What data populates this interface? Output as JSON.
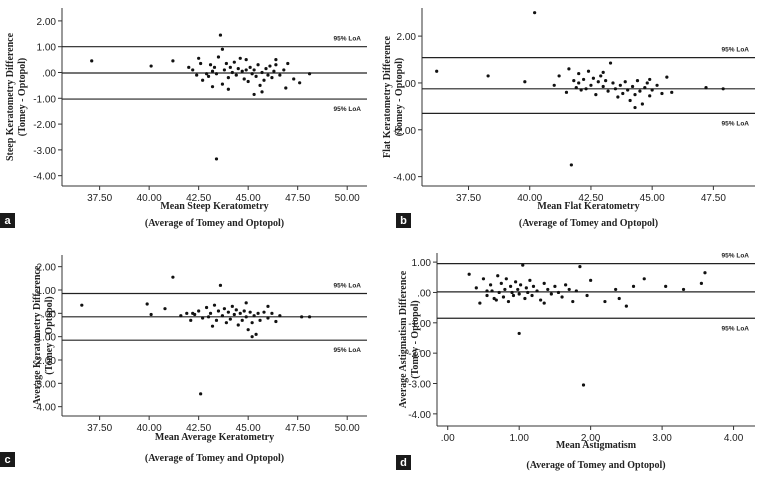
{
  "chart_data": [
    {
      "panel": "a",
      "type": "scatter",
      "xlabel": "Mean Steep Keratometry",
      "xlabel2": "(Average of Tomey and Optopol)",
      "ylabel": "Steep Keratometry Difference",
      "ylabel2": "(Tomey - Optopol)",
      "xlim": [
        35.6,
        51.0
      ],
      "ylim": [
        -4.4,
        2.5
      ],
      "xticks": [
        37.5,
        40,
        42.5,
        45,
        47.5,
        50
      ],
      "xtick_labels": [
        "37.50",
        "40.00",
        "42.50",
        "45.00",
        "47.50",
        "50.00"
      ],
      "yticks": [
        2,
        1,
        0,
        -1,
        -2,
        -3,
        -4
      ],
      "ytick_labels": [
        "2.00",
        "1.00",
        ".00",
        "-1.00",
        "-2.00",
        "-3.00",
        "-4.00"
      ],
      "mean_line": -0.02,
      "loa_upper": 1.0,
      "loa_lower": -1.03,
      "loa_label": "95% LoA",
      "points": [
        [
          37.1,
          0.45
        ],
        [
          40.1,
          0.25
        ],
        [
          41.2,
          0.45
        ],
        [
          42.0,
          0.2
        ],
        [
          42.2,
          0.1
        ],
        [
          42.4,
          -0.1
        ],
        [
          42.6,
          0.35
        ],
        [
          42.7,
          -0.3
        ],
        [
          43.0,
          -0.15
        ],
        [
          43.1,
          0.3
        ],
        [
          43.2,
          0.05
        ],
        [
          43.3,
          0.2
        ],
        [
          43.4,
          -0.05
        ],
        [
          43.5,
          0.6
        ],
        [
          43.6,
          1.45
        ],
        [
          43.7,
          0.9
        ],
        [
          43.8,
          0.1
        ],
        [
          43.9,
          0.35
        ],
        [
          44.0,
          -0.2
        ],
        [
          44.1,
          0.2
        ],
        [
          44.2,
          0.0
        ],
        [
          44.3,
          0.4
        ],
        [
          44.4,
          -0.1
        ],
        [
          44.5,
          0.15
        ],
        [
          44.6,
          0.55
        ],
        [
          44.7,
          0.05
        ],
        [
          44.8,
          -0.25
        ],
        [
          44.9,
          0.1
        ],
        [
          45.0,
          -0.35
        ],
        [
          45.1,
          0.2
        ],
        [
          45.2,
          -0.05
        ],
        [
          45.3,
          0.1
        ],
        [
          45.4,
          -0.15
        ],
        [
          45.5,
          0.3
        ],
        [
          45.6,
          -0.5
        ],
        [
          45.7,
          0.0
        ],
        [
          45.8,
          -0.3
        ],
        [
          45.9,
          0.15
        ],
        [
          46.0,
          -0.1
        ],
        [
          46.1,
          0.25
        ],
        [
          46.2,
          -0.2
        ],
        [
          46.3,
          0.05
        ],
        [
          46.4,
          0.3
        ],
        [
          46.6,
          -0.1
        ],
        [
          46.8,
          0.1
        ],
        [
          47.0,
          0.35
        ],
        [
          47.3,
          -0.25
        ],
        [
          47.6,
          -0.4
        ],
        [
          48.1,
          -0.05
        ],
        [
          43.4,
          -3.35
        ],
        [
          42.9,
          -0.05
        ],
        [
          43.7,
          -0.45
        ],
        [
          44.0,
          -0.65
        ],
        [
          45.3,
          -0.85
        ],
        [
          45.7,
          -0.75
        ],
        [
          46.4,
          0.5
        ],
        [
          42.5,
          0.55
        ],
        [
          44.9,
          0.5
        ],
        [
          43.2,
          -0.55
        ],
        [
          46.9,
          -0.6
        ]
      ]
    },
    {
      "panel": "b",
      "type": "scatter",
      "xlabel": "Mean Flat Keratometry",
      "xlabel2": "(Average of Tomey and Optopol)",
      "ylabel": "Flat Keratometry Difference",
      "ylabel2": "(Tomey - Optopol)",
      "xlim": [
        35.6,
        49.2
      ],
      "ylim": [
        -4.4,
        3.2
      ],
      "xticks": [
        37.5,
        40,
        42.5,
        45,
        47.5
      ],
      "xtick_labels": [
        "37.50",
        "40.00",
        "42.50",
        "45.00",
        "47.50"
      ],
      "yticks": [
        2,
        0,
        -2,
        -4
      ],
      "ytick_labels": [
        "2.00",
        ".00",
        "-2.00",
        "-4.00"
      ],
      "mean_line": -0.25,
      "loa_upper": 1.08,
      "loa_lower": -1.3,
      "loa_label": "95% LoA",
      "points": [
        [
          36.2,
          0.5
        ],
        [
          38.3,
          0.3
        ],
        [
          39.8,
          0.05
        ],
        [
          40.2,
          3.0
        ],
        [
          41.0,
          -0.1
        ],
        [
          41.2,
          0.3
        ],
        [
          41.5,
          -0.4
        ],
        [
          41.6,
          0.6
        ],
        [
          41.8,
          0.1
        ],
        [
          41.9,
          -0.2
        ],
        [
          42.0,
          0.4
        ],
        [
          42.1,
          -0.3
        ],
        [
          42.2,
          0.15
        ],
        [
          42.4,
          0.5
        ],
        [
          42.5,
          -0.1
        ],
        [
          42.6,
          0.2
        ],
        [
          42.7,
          -0.5
        ],
        [
          42.8,
          0.05
        ],
        [
          42.9,
          0.3
        ],
        [
          43.0,
          -0.15
        ],
        [
          43.1,
          0.1
        ],
        [
          43.2,
          -0.35
        ],
        [
          43.3,
          0.85
        ],
        [
          43.4,
          0.0
        ],
        [
          43.5,
          -0.25
        ],
        [
          43.6,
          -0.6
        ],
        [
          43.7,
          -0.1
        ],
        [
          43.8,
          -0.45
        ],
        [
          43.9,
          0.05
        ],
        [
          44.0,
          -0.3
        ],
        [
          44.1,
          -0.75
        ],
        [
          44.2,
          -0.15
        ],
        [
          44.3,
          -0.5
        ],
        [
          44.4,
          0.1
        ],
        [
          44.5,
          -0.35
        ],
        [
          44.6,
          -0.9
        ],
        [
          44.7,
          -0.2
        ],
        [
          44.8,
          0.0
        ],
        [
          44.9,
          -0.55
        ],
        [
          45.0,
          -0.3
        ],
        [
          45.2,
          -0.1
        ],
        [
          45.4,
          -0.45
        ],
        [
          45.6,
          0.25
        ],
        [
          45.8,
          -0.4
        ],
        [
          47.2,
          -0.2
        ],
        [
          47.9,
          -0.25
        ],
        [
          41.7,
          -3.5
        ],
        [
          42.3,
          -0.25
        ],
        [
          43.0,
          0.45
        ],
        [
          44.3,
          -1.05
        ],
        [
          44.9,
          0.15
        ],
        [
          42.0,
          0.0
        ]
      ]
    },
    {
      "panel": "c",
      "type": "scatter",
      "xlabel": "Mean Average Keratometry",
      "xlabel2": "(Average of Tomey and Optopol)",
      "ylabel": "Average Keratometry Difference",
      "ylabel2": "(Tomey - Optopol)",
      "xlim": [
        35.6,
        51.0
      ],
      "ylim": [
        -4.4,
        2.5
      ],
      "xticks": [
        37.5,
        40,
        42.5,
        45,
        47.5,
        50
      ],
      "xtick_labels": [
        "37.50",
        "40.00",
        "42.50",
        "45.00",
        "47.50",
        "50.00"
      ],
      "yticks": [
        2,
        1,
        0,
        -1,
        -2,
        -3,
        -4
      ],
      "ytick_labels": [
        "2.00",
        "1.00",
        ".00",
        "-1.00",
        "-2.00",
        "-3.00",
        "-4.00"
      ],
      "mean_line": -0.15,
      "loa_upper": 0.85,
      "loa_lower": -1.15,
      "loa_label": "95% LoA",
      "points": [
        [
          36.6,
          0.35
        ],
        [
          39.9,
          0.4
        ],
        [
          40.1,
          -0.05
        ],
        [
          40.8,
          0.2
        ],
        [
          41.2,
          1.55
        ],
        [
          41.6,
          -0.1
        ],
        [
          41.9,
          0.0
        ],
        [
          42.1,
          -0.3
        ],
        [
          42.3,
          -0.05
        ],
        [
          42.5,
          0.1
        ],
        [
          42.7,
          -0.2
        ],
        [
          42.9,
          0.25
        ],
        [
          43.0,
          -0.15
        ],
        [
          43.1,
          0.0
        ],
        [
          43.3,
          0.35
        ],
        [
          43.4,
          -0.3
        ],
        [
          43.5,
          0.1
        ],
        [
          43.6,
          1.2
        ],
        [
          43.7,
          -0.1
        ],
        [
          43.8,
          0.2
        ],
        [
          43.9,
          -0.4
        ],
        [
          44.0,
          0.05
        ],
        [
          44.1,
          -0.25
        ],
        [
          44.2,
          0.3
        ],
        [
          44.3,
          -0.05
        ],
        [
          44.4,
          0.15
        ],
        [
          44.5,
          -0.5
        ],
        [
          44.6,
          0.0
        ],
        [
          44.7,
          -0.3
        ],
        [
          44.8,
          0.1
        ],
        [
          44.9,
          -0.15
        ],
        [
          45.0,
          -0.7
        ],
        [
          45.1,
          0.05
        ],
        [
          45.2,
          -0.4
        ],
        [
          45.3,
          -0.1
        ],
        [
          45.4,
          -0.9
        ],
        [
          45.5,
          0.0
        ],
        [
          45.6,
          -0.3
        ],
        [
          45.8,
          0.05
        ],
        [
          46.0,
          -0.2
        ],
        [
          46.2,
          0.0
        ],
        [
          46.4,
          -0.35
        ],
        [
          46.6,
          -0.1
        ],
        [
          47.7,
          -0.15
        ],
        [
          48.1,
          -0.15
        ],
        [
          42.6,
          -3.45
        ],
        [
          45.2,
          -1.0
        ],
        [
          44.9,
          0.45
        ],
        [
          43.2,
          -0.55
        ],
        [
          46.0,
          0.3
        ],
        [
          42.2,
          0.0
        ]
      ]
    },
    {
      "panel": "d",
      "type": "scatter",
      "xlabel": "Mean Astigmatism",
      "xlabel2": "(Average of Tomey and Optopol)",
      "ylabel": "Average Astigmatism Difference",
      "ylabel2": "(Tomey - Optopol)",
      "xlim": [
        -0.15,
        4.3
      ],
      "ylim": [
        -4.4,
        1.3
      ],
      "xticks": [
        0,
        1,
        2,
        3,
        4
      ],
      "xtick_labels": [
        ".00",
        "1.00",
        "2.00",
        "3.00",
        "4.00"
      ],
      "yticks": [
        1,
        0,
        -1,
        -2,
        -3,
        -4
      ],
      "ytick_labels": [
        "1.00",
        ".00",
        "-1.00",
        "-2.00",
        "-3.00",
        "-4.00"
      ],
      "mean_line": 0.02,
      "loa_upper": 0.95,
      "loa_lower": -0.85,
      "loa_label": "95% LoA",
      "points": [
        [
          0.3,
          0.6
        ],
        [
          0.4,
          0.15
        ],
        [
          0.45,
          -0.35
        ],
        [
          0.5,
          0.45
        ],
        [
          0.55,
          -0.1
        ],
        [
          0.6,
          0.25
        ],
        [
          0.62,
          0.05
        ],
        [
          0.65,
          -0.2
        ],
        [
          0.7,
          0.55
        ],
        [
          0.72,
          0.0
        ],
        [
          0.75,
          0.3
        ],
        [
          0.78,
          -0.15
        ],
        [
          0.8,
          0.1
        ],
        [
          0.82,
          0.45
        ],
        [
          0.85,
          -0.3
        ],
        [
          0.88,
          0.2
        ],
        [
          0.9,
          0.0
        ],
        [
          0.92,
          -0.1
        ],
        [
          0.95,
          0.35
        ],
        [
          0.98,
          0.1
        ],
        [
          1.0,
          -0.05
        ],
        [
          1.02,
          0.25
        ],
        [
          1.05,
          0.9
        ],
        [
          1.08,
          -0.2
        ],
        [
          1.1,
          0.15
        ],
        [
          1.12,
          0.0
        ],
        [
          1.15,
          0.4
        ],
        [
          1.18,
          -0.1
        ],
        [
          1.2,
          0.2
        ],
        [
          1.25,
          0.05
        ],
        [
          1.3,
          -0.25
        ],
        [
          1.35,
          0.3
        ],
        [
          1.4,
          0.1
        ],
        [
          1.45,
          -0.05
        ],
        [
          1.5,
          0.2
        ],
        [
          1.55,
          0.0
        ],
        [
          1.6,
          -0.15
        ],
        [
          1.65,
          0.25
        ],
        [
          1.7,
          0.1
        ],
        [
          1.75,
          -0.3
        ],
        [
          1.8,
          0.05
        ],
        [
          1.85,
          0.85
        ],
        [
          1.95,
          -0.1
        ],
        [
          2.0,
          0.4
        ],
        [
          2.2,
          -0.3
        ],
        [
          2.35,
          0.1
        ],
        [
          2.5,
          -0.45
        ],
        [
          2.6,
          0.2
        ],
        [
          2.75,
          0.45
        ],
        [
          3.05,
          0.2
        ],
        [
          3.3,
          0.1
        ],
        [
          3.55,
          0.3
        ],
        [
          3.6,
          0.65
        ],
        [
          1.9,
          -3.05
        ],
        [
          1.0,
          -1.35
        ],
        [
          0.55,
          0.05
        ],
        [
          0.68,
          -0.25
        ],
        [
          1.35,
          -0.35
        ],
        [
          2.4,
          -0.2
        ]
      ]
    }
  ]
}
